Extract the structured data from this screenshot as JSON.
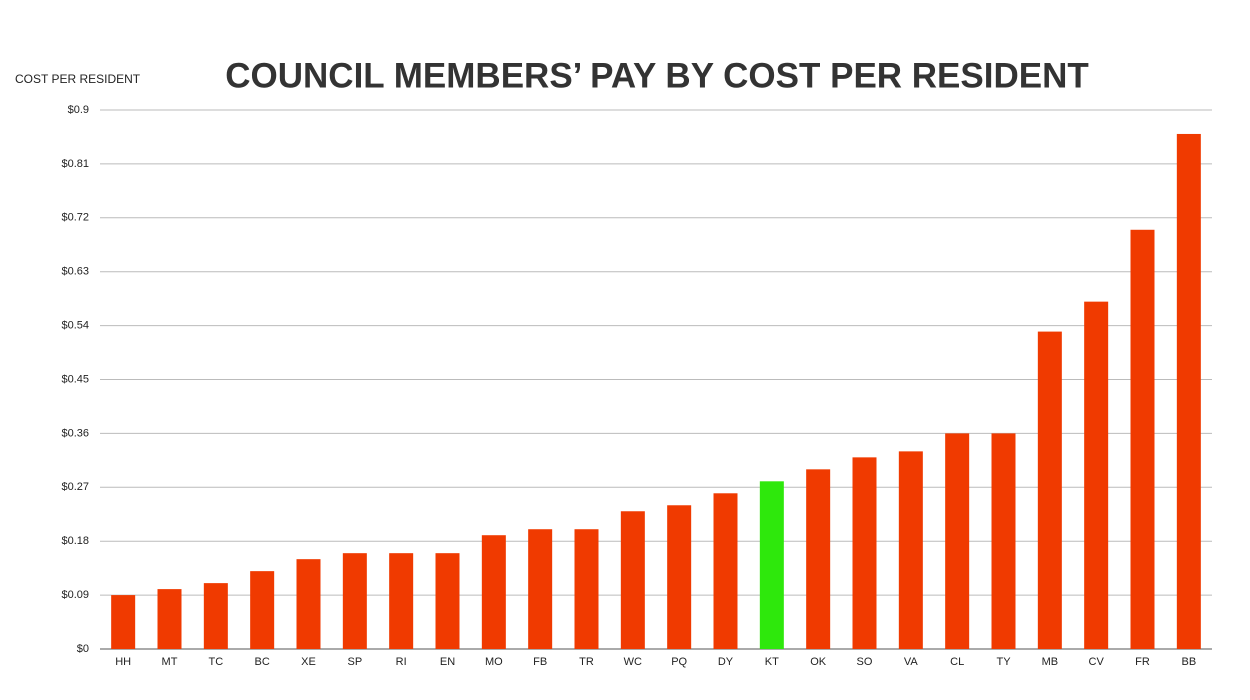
{
  "chart_data": {
    "type": "bar",
    "title": "COUNCIL MEMBERS’ PAY BY COST PER RESIDENT",
    "y_label": "COST PER RESIDENT",
    "categories": [
      "HH",
      "MT",
      "TC",
      "BC",
      "XE",
      "SP",
      "RI",
      "EN",
      "MO",
      "FB",
      "TR",
      "WC",
      "PQ",
      "DY",
      "KT",
      "OK",
      "SO",
      "VA",
      "CL",
      "TY",
      "MB",
      "CV",
      "FR",
      "BB"
    ],
    "values": [
      0.09,
      0.1,
      0.11,
      0.13,
      0.15,
      0.16,
      0.16,
      0.16,
      0.19,
      0.2,
      0.2,
      0.23,
      0.24,
      0.26,
      0.28,
      0.3,
      0.32,
      0.33,
      0.36,
      0.36,
      0.53,
      0.58,
      0.7,
      0.86
    ],
    "colors": [
      "#f03a00",
      "#f03a00",
      "#f03a00",
      "#f03a00",
      "#f03a00",
      "#f03a00",
      "#f03a00",
      "#f03a00",
      "#f03a00",
      "#f03a00",
      "#f03a00",
      "#f03a00",
      "#f03a00",
      "#f03a00",
      "#2ee80c",
      "#f03a00",
      "#f03a00",
      "#f03a00",
      "#f03a00",
      "#f03a00",
      "#f03a00",
      "#f03a00",
      "#f03a00",
      "#f03a00"
    ],
    "ylim": [
      0,
      0.9
    ],
    "yticks": [
      {
        "value": 0,
        "label": "$0"
      },
      {
        "value": 0.09,
        "label": "$0.09"
      },
      {
        "value": 0.18,
        "label": "$0.18"
      },
      {
        "value": 0.27,
        "label": "$0.27"
      },
      {
        "value": 0.36,
        "label": "$0.36"
      },
      {
        "value": 0.45,
        "label": "$0.45"
      },
      {
        "value": 0.54,
        "label": "$0.54"
      },
      {
        "value": 0.63,
        "label": "$0.63"
      },
      {
        "value": 0.72,
        "label": "$0.72"
      },
      {
        "value": 0.81,
        "label": "$0.81"
      },
      {
        "value": 0.9,
        "label": "$0.9"
      }
    ],
    "grid": true
  }
}
